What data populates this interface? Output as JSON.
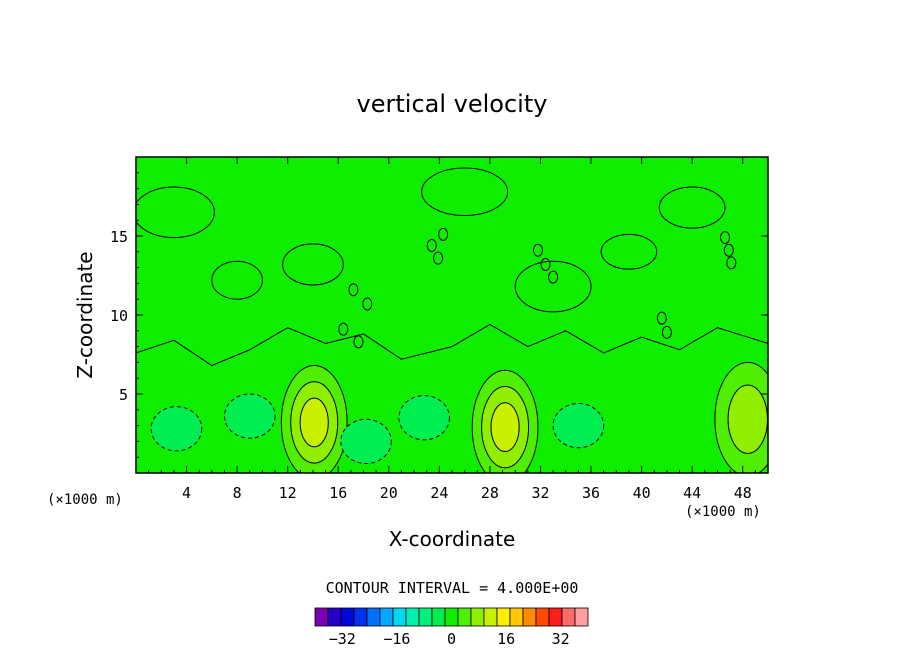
{
  "chart_data": {
    "type": "contour",
    "title": "vertical velocity",
    "xlabel": "X-coordinate",
    "ylabel": "Z-coordinate",
    "x_unit": "(×1000 m)",
    "z_unit": "(×1000 m)",
    "xlim": [
      0,
      50
    ],
    "ylim": [
      0,
      20
    ],
    "x_ticks": [
      4,
      8,
      12,
      16,
      20,
      24,
      28,
      32,
      36,
      40,
      44,
      48
    ],
    "y_ticks": [
      5,
      10,
      15
    ],
    "contour_interval_text": "CONTOUR INTERVAL = 4.000E+00",
    "contour_interval": 4,
    "colorbar": {
      "levels": [
        -40,
        -36,
        -32,
        -28,
        -24,
        -20,
        -16,
        -12,
        -8,
        -4,
        0,
        4,
        8,
        12,
        16,
        20,
        24,
        28,
        32,
        36,
        40
      ],
      "colors": [
        "#7a00b4",
        "#2600c8",
        "#0008d8",
        "#0030f0",
        "#0070ff",
        "#00a8ff",
        "#00d8f0",
        "#00f0b0",
        "#00f080",
        "#00ee50",
        "#10ee00",
        "#50ee00",
        "#90ee00",
        "#c8f000",
        "#ffee00",
        "#ffc800",
        "#ff8c00",
        "#ff4a00",
        "#ff1e1e",
        "#ff6a6a",
        "#ff9e9e"
      ],
      "tick_values": [
        -32,
        -16,
        0,
        16,
        32
      ]
    },
    "features": [
      {
        "kind": "updraft",
        "x": 14.1,
        "z": 3.2,
        "max": 12
      },
      {
        "kind": "updraft",
        "x": 29.2,
        "z": 2.9,
        "max": 12
      },
      {
        "kind": "updraft",
        "x": 48.4,
        "z": 3.4,
        "max": 8
      },
      {
        "kind": "downdraft",
        "x": 3.2,
        "z": 2.8,
        "min": -4
      },
      {
        "kind": "downdraft",
        "x": 9.0,
        "z": 3.6,
        "min": -4
      },
      {
        "kind": "downdraft",
        "x": 22.8,
        "z": 3.5,
        "min": -4
      },
      {
        "kind": "downdraft",
        "x": 35.0,
        "z": 3.0,
        "min": -4
      },
      {
        "kind": "downdraft",
        "x": 18.2,
        "z": 2.0,
        "min": -4
      }
    ]
  }
}
